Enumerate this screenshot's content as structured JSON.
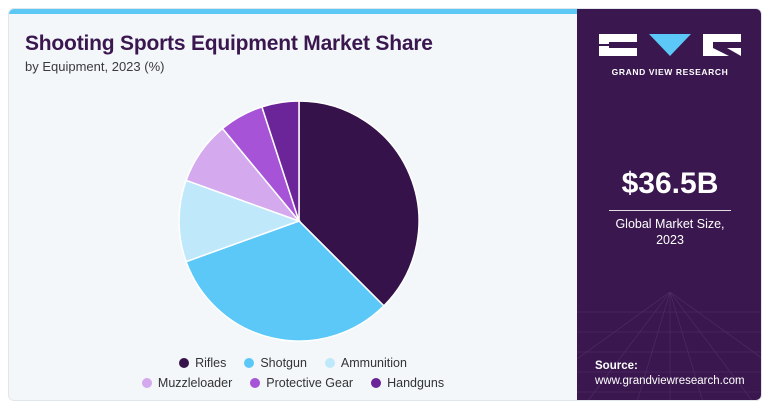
{
  "header": {
    "title": "Shooting Sports Equipment Market Share",
    "subtitle": "by Equipment, 2023 (%)"
  },
  "brand": {
    "name": "GRAND VIEW RESEARCH",
    "logo_icon": "gvr-logo-icon"
  },
  "market": {
    "value": "$36.5B",
    "caption_line1": "Global Market Size,",
    "caption_line2": "2023"
  },
  "source": {
    "label": "Source:",
    "url": "www.grandviewresearch.com"
  },
  "colors": {
    "accent": "#5bc8f5",
    "panel": "#3a174e",
    "title": "#3a174e"
  },
  "chart_data": {
    "type": "pie",
    "title": "Shooting Sports Equipment Market Share",
    "subtitle": "by Equipment, 2023 (%)",
    "legend_position": "bottom",
    "slices": [
      {
        "name": "Rifles",
        "value": 37.5,
        "color": "#35134a"
      },
      {
        "name": "Shotgun",
        "value": 32.0,
        "color": "#5cc8f7"
      },
      {
        "name": "Ammunition",
        "value": 11.0,
        "color": "#bfe8fb"
      },
      {
        "name": "Muzzleloader",
        "value": 8.5,
        "color": "#d4a9ee"
      },
      {
        "name": "Protective Gear",
        "value": 6.0,
        "color": "#a653d8"
      },
      {
        "name": "Handguns",
        "value": 5.0,
        "color": "#6c2599"
      }
    ]
  }
}
